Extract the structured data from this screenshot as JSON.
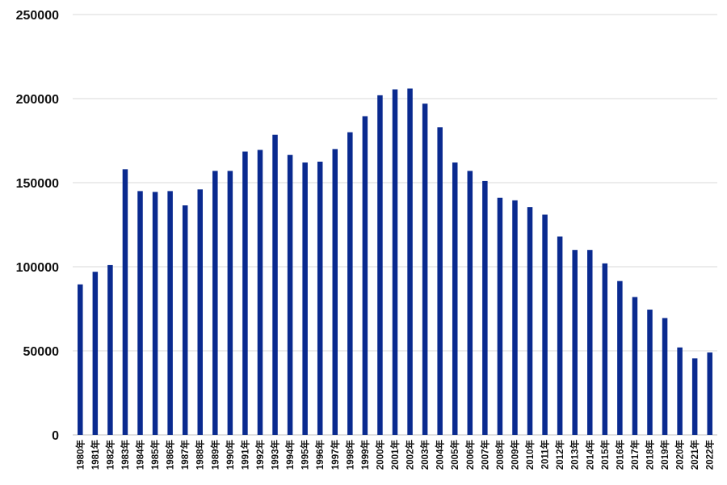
{
  "chart_data": {
    "type": "bar",
    "title": "",
    "xlabel": "",
    "ylabel": "",
    "ylim": [
      0,
      250000
    ],
    "yticks": [
      "0",
      "50000",
      "100000",
      "150000",
      "200000",
      "250000"
    ],
    "grid": true,
    "legend": "none",
    "bar_color": "#0a2a8f",
    "categories": [
      "1980年",
      "1981年",
      "1982年",
      "1983年",
      "1984年",
      "1985年",
      "1986年",
      "1987年",
      "1988年",
      "1989年",
      "1990年",
      "1991年",
      "1992年",
      "1993年",
      "1994年",
      "1995年",
      "1996年",
      "1997年",
      "1998年",
      "1999年",
      "2000年",
      "2001年",
      "2002年",
      "2003年",
      "2004年",
      "2005年",
      "2006年",
      "2007年",
      "2008年",
      "2009年",
      "2010年",
      "2011年",
      "2012年",
      "2013年",
      "2014年",
      "2015年",
      "2016年",
      "2017年",
      "2018年",
      "2019年",
      "2020年",
      "2021年",
      "2022年"
    ],
    "values": [
      89500,
      97000,
      101000,
      158000,
      145000,
      144500,
      145000,
      136500,
      146000,
      157000,
      157000,
      168500,
      169500,
      178500,
      166500,
      162000,
      162500,
      170000,
      180000,
      189500,
      202000,
      205500,
      206000,
      197000,
      183000,
      162000,
      157000,
      151000,
      141000,
      139500,
      135500,
      131000,
      118000,
      110000,
      110000,
      102000,
      91500,
      82000,
      74500,
      69500,
      52000,
      45500,
      49000
    ]
  }
}
